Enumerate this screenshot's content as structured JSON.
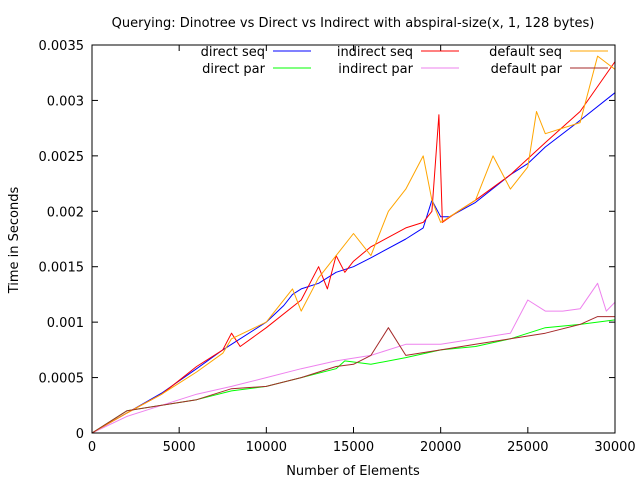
{
  "chart_data": {
    "type": "line",
    "title": "Querying: Dinotree vs Direct vs Indirect with abspiral-size(x, 1, 128 bytes)",
    "xlabel": "Number of Elements",
    "ylabel": "Time in Seconds",
    "xlim": [
      0,
      30000
    ],
    "ylim": [
      0,
      0.0035
    ],
    "xticks": [
      0,
      5000,
      10000,
      15000,
      20000,
      25000,
      30000
    ],
    "xtick_labels": [
      "0",
      "5000",
      "10000",
      "15000",
      "20000",
      "25000",
      "30000"
    ],
    "yticks": [
      0,
      0.0005,
      0.001,
      0.0015,
      0.002,
      0.0025,
      0.003,
      0.0035
    ],
    "ytick_labels": [
      "0",
      "0.0005",
      "0.001",
      "0.0015",
      "0.002",
      "0.0025",
      "0.003",
      "0.0035"
    ],
    "grid": false,
    "legend_position": "top, three columns",
    "series": [
      {
        "name": "direct seq",
        "color": "#0000ff",
        "x": [
          0,
          2000,
          4000,
          6000,
          7500,
          8000,
          10000,
          11000,
          11500,
          12000,
          13000,
          14000,
          15000,
          16000,
          18000,
          19000,
          19500,
          20000,
          20500,
          22000,
          24000,
          25000,
          26000,
          28000,
          30000
        ],
        "y": [
          0,
          0.00018,
          0.00036,
          0.00058,
          0.00075,
          0.0008,
          0.001,
          0.00115,
          0.00125,
          0.0013,
          0.00135,
          0.00145,
          0.0015,
          0.00158,
          0.00175,
          0.00185,
          0.0021,
          0.00195,
          0.00195,
          0.00208,
          0.00233,
          0.00243,
          0.00258,
          0.00282,
          0.00307
        ]
      },
      {
        "name": "direct par",
        "color": "#00ff00",
        "x": [
          0,
          2000,
          4000,
          6000,
          8000,
          10000,
          12000,
          14000,
          14500,
          16000,
          18000,
          20000,
          22000,
          24000,
          26000,
          28000,
          30000
        ],
        "y": [
          0,
          0.0002,
          0.00025,
          0.0003,
          0.00038,
          0.00042,
          0.0005,
          0.00058,
          0.00065,
          0.00062,
          0.00068,
          0.00075,
          0.00078,
          0.00085,
          0.00095,
          0.00098,
          0.00102
        ]
      },
      {
        "name": "indirect seq",
        "color": "#ff0000",
        "x": [
          0,
          2000,
          4000,
          6000,
          7500,
          8000,
          8500,
          10000,
          12000,
          13000,
          13500,
          14000,
          14500,
          15000,
          16000,
          18000,
          19000,
          19500,
          19900,
          20100,
          21000,
          22000,
          24000,
          26000,
          28000,
          30000
        ],
        "y": [
          0,
          0.00018,
          0.00035,
          0.0006,
          0.00075,
          0.0009,
          0.00078,
          0.00095,
          0.0012,
          0.0015,
          0.0013,
          0.0016,
          0.00145,
          0.00155,
          0.00168,
          0.00185,
          0.0019,
          0.002,
          0.00287,
          0.0019,
          0.002,
          0.0021,
          0.00233,
          0.00262,
          0.0029,
          0.00335
        ]
      },
      {
        "name": "indirect par",
        "color": "#ee82ee",
        "x": [
          0,
          2000,
          4000,
          6000,
          8000,
          10000,
          12000,
          14000,
          16000,
          18000,
          20000,
          22000,
          24000,
          25000,
          26000,
          27000,
          28000,
          29000,
          29500,
          30000
        ],
        "y": [
          0,
          0.00015,
          0.00025,
          0.00035,
          0.00042,
          0.0005,
          0.00058,
          0.00065,
          0.0007,
          0.0008,
          0.0008,
          0.00085,
          0.0009,
          0.0012,
          0.0011,
          0.0011,
          0.00112,
          0.00135,
          0.0011,
          0.00118
        ]
      },
      {
        "name": "default seq",
        "color": "#ffa500",
        "x": [
          0,
          2000,
          4000,
          6000,
          7500,
          8000,
          10000,
          11500,
          12000,
          13000,
          14000,
          15000,
          16000,
          17000,
          18000,
          19000,
          19500,
          20000,
          22000,
          23000,
          24000,
          25000,
          25500,
          26000,
          28000,
          29000,
          30000
        ],
        "y": [
          0,
          0.00018,
          0.00035,
          0.00055,
          0.00072,
          0.00085,
          0.001,
          0.0013,
          0.0011,
          0.0014,
          0.0016,
          0.0018,
          0.0016,
          0.002,
          0.0022,
          0.0025,
          0.0021,
          0.0019,
          0.0021,
          0.0025,
          0.0022,
          0.0024,
          0.0029,
          0.0027,
          0.0028,
          0.0034,
          0.00328
        ]
      },
      {
        "name": "default par",
        "color": "#a52a2a",
        "x": [
          0,
          2000,
          4000,
          6000,
          8000,
          10000,
          12000,
          14000,
          15000,
          16000,
          17000,
          18000,
          20000,
          22000,
          24000,
          26000,
          28000,
          29000,
          30000
        ],
        "y": [
          0,
          0.0002,
          0.00025,
          0.0003,
          0.0004,
          0.00042,
          0.0005,
          0.0006,
          0.00062,
          0.0007,
          0.00095,
          0.0007,
          0.00075,
          0.0008,
          0.00085,
          0.0009,
          0.00098,
          0.00105,
          0.00105
        ]
      }
    ]
  }
}
